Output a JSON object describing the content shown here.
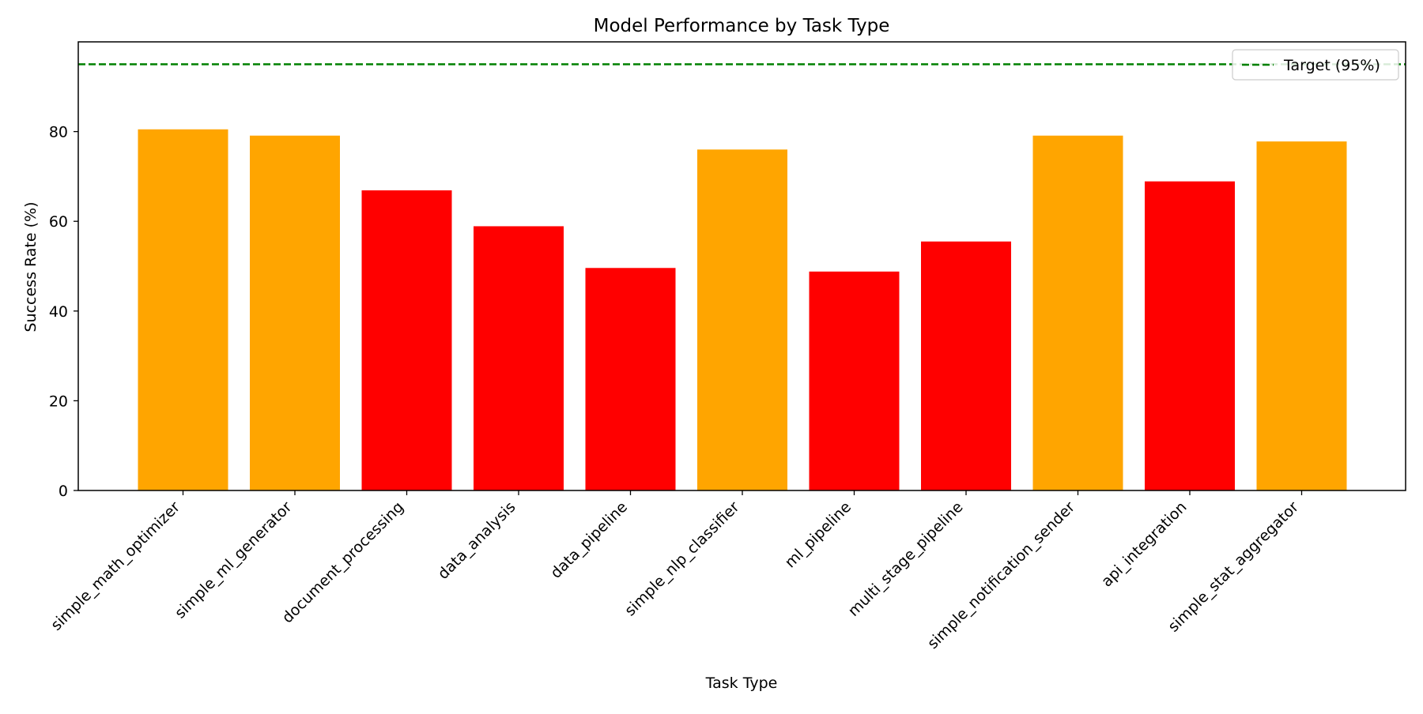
{
  "chart_data": {
    "type": "bar",
    "title": "Model Performance by Task Type",
    "xlabel": "Task Type",
    "ylabel": "Success Rate (%)",
    "categories": [
      "simple_math_optimizer",
      "simple_ml_generator",
      "document_processing",
      "data_analysis",
      "data_pipeline",
      "simple_nlp_classifier",
      "ml_pipeline",
      "multi_stage_pipeline",
      "simple_notification_sender",
      "api_integration",
      "simple_stat_aggregator"
    ],
    "values": [
      80.5,
      79.1,
      66.9,
      58.9,
      49.6,
      76.0,
      48.8,
      55.5,
      79.1,
      68.9,
      77.8
    ],
    "bar_colors": [
      "#FFA500",
      "#FFA500",
      "#FF0000",
      "#FF0000",
      "#FF0000",
      "#FFA500",
      "#FF0000",
      "#FF0000",
      "#FFA500",
      "#FF0000",
      "#FFA500"
    ],
    "ylim": [
      0,
      100
    ],
    "yticks": [
      0,
      20,
      40,
      60,
      80
    ],
    "reference_line": {
      "label": "Target (95%)",
      "value": 95,
      "color": "#008000",
      "style": "dashed"
    },
    "legend_position": "top-right",
    "grid": false
  }
}
